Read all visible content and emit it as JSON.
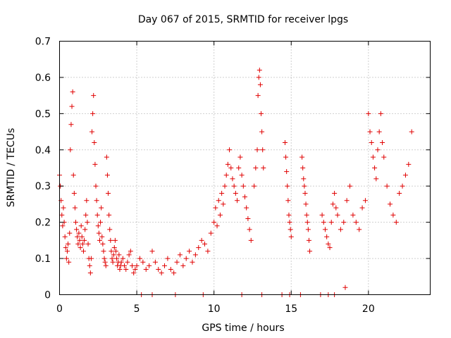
{
  "chart_data": {
    "type": "scatter",
    "title": "Day 067 of 2015, SRMTID for receiver lpgs",
    "xlabel": "GPS time / hours",
    "ylabel": "SRMTID / TECUs",
    "xlim": [
      0,
      24
    ],
    "ylim": [
      0,
      0.7
    ],
    "xticks": [
      0,
      5,
      10,
      15,
      20
    ],
    "yticks": [
      0,
      0.1,
      0.2,
      0.3,
      0.4,
      0.5,
      0.6,
      0.7
    ],
    "xtick_labels": [
      "0",
      "5",
      "10",
      "15",
      "20"
    ],
    "ytick_labels": [
      "0",
      "0.1",
      "0.2",
      "0.3",
      "0.4",
      "0.5",
      "0.6",
      "0.7"
    ],
    "grid": true,
    "marker": "+",
    "color": "#e00000",
    "series": [
      {
        "name": "SRMTID",
        "x": [
          0.0,
          0.05,
          0.1,
          0.15,
          0.2,
          0.25,
          0.3,
          0.35,
          0.4,
          0.45,
          0.5,
          0.55,
          0.6,
          0.65,
          0.7,
          0.75,
          0.8,
          0.85,
          0.9,
          0.95,
          1.0,
          1.05,
          1.1,
          1.15,
          1.2,
          1.25,
          1.3,
          1.35,
          1.4,
          1.45,
          1.5,
          1.55,
          1.6,
          1.65,
          1.7,
          1.75,
          1.8,
          1.85,
          1.9,
          1.95,
          2.0,
          2.05,
          2.1,
          2.15,
          2.2,
          2.25,
          2.3,
          2.35,
          2.4,
          2.45,
          2.5,
          2.55,
          2.6,
          2.65,
          2.7,
          2.75,
          2.8,
          2.85,
          2.9,
          2.95,
          3.0,
          3.05,
          3.1,
          3.15,
          3.2,
          3.25,
          3.3,
          3.35,
          3.4,
          3.45,
          3.5,
          3.55,
          3.6,
          3.65,
          3.7,
          3.75,
          3.8,
          3.85,
          3.9,
          3.95,
          4.0,
          4.1,
          4.2,
          4.3,
          4.4,
          4.5,
          4.6,
          4.7,
          4.8,
          4.9,
          5.0,
          5.2,
          5.4,
          5.6,
          5.8,
          6.0,
          6.2,
          6.4,
          6.6,
          6.8,
          7.0,
          7.2,
          7.4,
          7.6,
          7.8,
          8.0,
          8.2,
          8.4,
          8.6,
          8.8,
          9.0,
          9.2,
          9.4,
          9.6,
          9.8,
          10.0,
          10.1,
          10.2,
          10.3,
          10.4,
          10.5,
          10.6,
          10.7,
          10.8,
          10.9,
          11.0,
          11.1,
          11.2,
          11.3,
          11.4,
          11.5,
          11.6,
          11.7,
          11.8,
          11.9,
          12.0,
          12.1,
          12.2,
          12.3,
          12.4,
          12.6,
          12.7,
          12.8,
          12.85,
          12.9,
          12.95,
          13.0,
          13.05,
          13.1,
          13.15,
          13.2,
          14.6,
          14.65,
          14.7,
          14.75,
          14.8,
          14.85,
          14.9,
          14.95,
          15.0,
          15.7,
          15.75,
          15.8,
          15.85,
          15.9,
          15.95,
          16.0,
          16.05,
          16.1,
          16.15,
          16.2,
          17.0,
          17.1,
          17.2,
          17.3,
          17.4,
          17.5,
          17.6,
          17.7,
          17.8,
          17.9,
          18.0,
          18.2,
          18.4,
          18.6,
          18.8,
          19.0,
          19.2,
          19.4,
          19.6,
          19.8,
          20.0,
          20.1,
          20.2,
          20.3,
          20.4,
          20.5,
          20.6,
          20.7,
          20.8,
          20.9,
          21.0,
          21.2,
          21.4,
          21.6,
          21.8,
          22.0,
          22.2,
          22.4,
          22.6,
          22.8,
          5.3,
          6.0,
          7.5,
          9.3,
          11.8,
          13.1,
          14.4,
          14.9,
          15.6,
          16.9,
          17.4,
          17.8,
          18.5
        ],
        "y": [
          0.33,
          0.3,
          0.26,
          0.22,
          0.19,
          0.24,
          0.2,
          0.16,
          0.13,
          0.1,
          0.12,
          0.14,
          0.09,
          0.17,
          0.4,
          0.47,
          0.52,
          0.56,
          0.33,
          0.28,
          0.24,
          0.2,
          0.18,
          0.16,
          0.14,
          0.17,
          0.15,
          0.13,
          0.19,
          0.16,
          0.14,
          0.12,
          0.15,
          0.18,
          0.22,
          0.26,
          0.2,
          0.14,
          0.1,
          0.08,
          0.06,
          0.1,
          0.45,
          0.5,
          0.55,
          0.42,
          0.36,
          0.3,
          0.26,
          0.22,
          0.19,
          0.17,
          0.15,
          0.2,
          0.24,
          0.16,
          0.14,
          0.12,
          0.1,
          0.09,
          0.08,
          0.38,
          0.33,
          0.28,
          0.22,
          0.18,
          0.15,
          0.12,
          0.1,
          0.09,
          0.11,
          0.13,
          0.15,
          0.12,
          0.1,
          0.08,
          0.09,
          0.11,
          0.07,
          0.08,
          0.09,
          0.1,
          0.08,
          0.07,
          0.09,
          0.11,
          0.12,
          0.08,
          0.06,
          0.07,
          0.08,
          0.1,
          0.09,
          0.07,
          0.08,
          0.12,
          0.09,
          0.07,
          0.06,
          0.08,
          0.1,
          0.07,
          0.06,
          0.09,
          0.11,
          0.08,
          0.1,
          0.12,
          0.09,
          0.11,
          0.13,
          0.15,
          0.14,
          0.12,
          0.17,
          0.2,
          0.24,
          0.19,
          0.26,
          0.22,
          0.28,
          0.25,
          0.3,
          0.33,
          0.36,
          0.4,
          0.35,
          0.32,
          0.3,
          0.28,
          0.26,
          0.35,
          0.38,
          0.33,
          0.3,
          0.27,
          0.24,
          0.21,
          0.18,
          0.15,
          0.3,
          0.35,
          0.4,
          0.55,
          0.6,
          0.62,
          0.58,
          0.5,
          0.45,
          0.4,
          0.35,
          0.42,
          0.38,
          0.34,
          0.3,
          0.26,
          0.22,
          0.2,
          0.18,
          0.16,
          0.38,
          0.35,
          0.32,
          0.3,
          0.28,
          0.25,
          0.22,
          0.2,
          0.18,
          0.15,
          0.12,
          0.22,
          0.2,
          0.18,
          0.16,
          0.14,
          0.13,
          0.2,
          0.25,
          0.28,
          0.24,
          0.22,
          0.18,
          0.2,
          0.26,
          0.3,
          0.22,
          0.2,
          0.18,
          0.24,
          0.26,
          0.5,
          0.45,
          0.42,
          0.38,
          0.35,
          0.32,
          0.4,
          0.45,
          0.5,
          0.42,
          0.38,
          0.3,
          0.25,
          0.22,
          0.2,
          0.28,
          0.3,
          0.33,
          0.36,
          0.45,
          0.0,
          0.0,
          0.0,
          0.0,
          0.0,
          0.0,
          0.0,
          0.0,
          0.0,
          0.0,
          0.0,
          0.0,
          0.02
        ]
      }
    ]
  }
}
